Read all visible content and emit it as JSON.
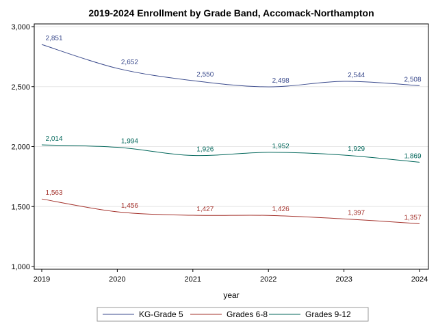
{
  "chart_data": {
    "type": "line",
    "title": "2019-2024 Enrollment by Grade Band, Accomack-Northampton",
    "xlabel": "year",
    "ylabel": "",
    "x": [
      2019,
      2020,
      2021,
      2022,
      2023,
      2024
    ],
    "ylim": [
      1000,
      3000
    ],
    "yticks": [
      1000,
      1500,
      2000,
      2500,
      3000
    ],
    "ytick_labels": [
      "1,000",
      "1,500",
      "2,000",
      "2,500",
      "3,000"
    ],
    "grid": true,
    "legend_position": "bottom",
    "series": [
      {
        "name": "KG-Grade 5",
        "color": "#3a4a8c",
        "values": [
          2851,
          2652,
          2550,
          2498,
          2544,
          2508
        ],
        "labels": [
          "2,851",
          "2,652",
          "2,550",
          "2,498",
          "2,544",
          "2,508"
        ]
      },
      {
        "name": "Grades 6-8",
        "color": "#a3302a",
        "values": [
          1563,
          1456,
          1427,
          1426,
          1397,
          1357
        ],
        "labels": [
          "1,563",
          "1,456",
          "1,427",
          "1,426",
          "1,397",
          "1,357"
        ]
      },
      {
        "name": "Grades 9-12",
        "color": "#00665a",
        "values": [
          2014,
          1994,
          1926,
          1952,
          1929,
          1869
        ],
        "labels": [
          "2,014",
          "1,994",
          "1,926",
          "1,952",
          "1,929",
          "1,869"
        ]
      }
    ]
  }
}
